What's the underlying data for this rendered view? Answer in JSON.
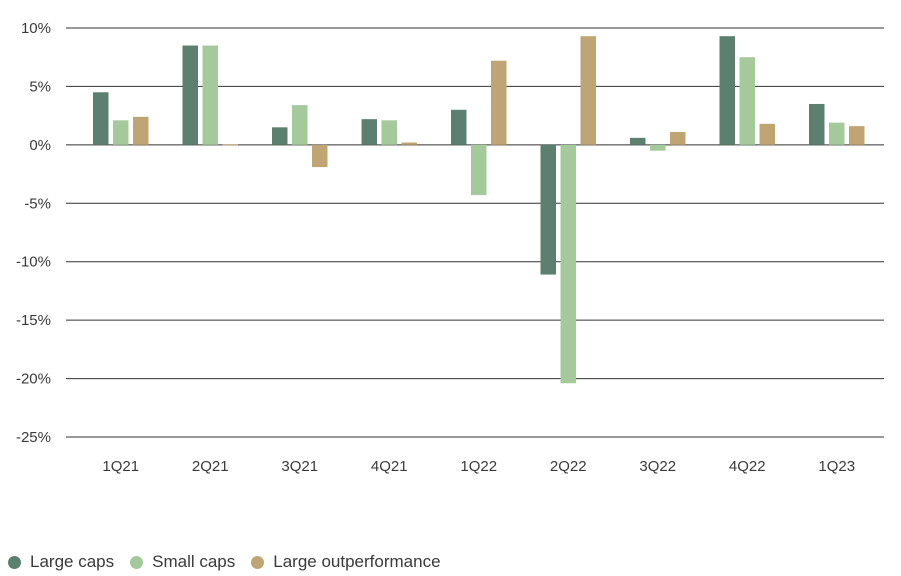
{
  "chart_data": {
    "type": "bar",
    "title": "",
    "xlabel": "",
    "ylabel": "",
    "categories": [
      "1Q21",
      "2Q21",
      "3Q21",
      "4Q21",
      "1Q22",
      "2Q22",
      "3Q22",
      "4Q22",
      "1Q23"
    ],
    "series": [
      {
        "name": "Large caps",
        "color": "#5c8070",
        "values": [
          4.5,
          8.5,
          1.5,
          2.2,
          3.0,
          -11.1,
          0.6,
          9.3,
          3.5
        ]
      },
      {
        "name": "Small caps",
        "color": "#a4c99a",
        "values": [
          2.1,
          8.5,
          3.4,
          2.1,
          -4.3,
          -20.4,
          -0.5,
          7.5,
          1.9
        ]
      },
      {
        "name": "Large outperformance",
        "color": "#bfa573",
        "values": [
          2.4,
          0.0,
          -1.9,
          0.2,
          7.2,
          9.3,
          1.1,
          1.8,
          1.6
        ]
      }
    ],
    "ylim": [
      -25,
      10
    ],
    "yticks": [
      10,
      5,
      0,
      -5,
      -10,
      -15,
      -20,
      -25
    ],
    "ytick_labels": [
      "10%",
      "5%",
      "0%",
      "-5%",
      "-10%",
      "-15%",
      "-20%",
      "-25%"
    ],
    "grid": true,
    "legend_position": "bottom-left"
  }
}
